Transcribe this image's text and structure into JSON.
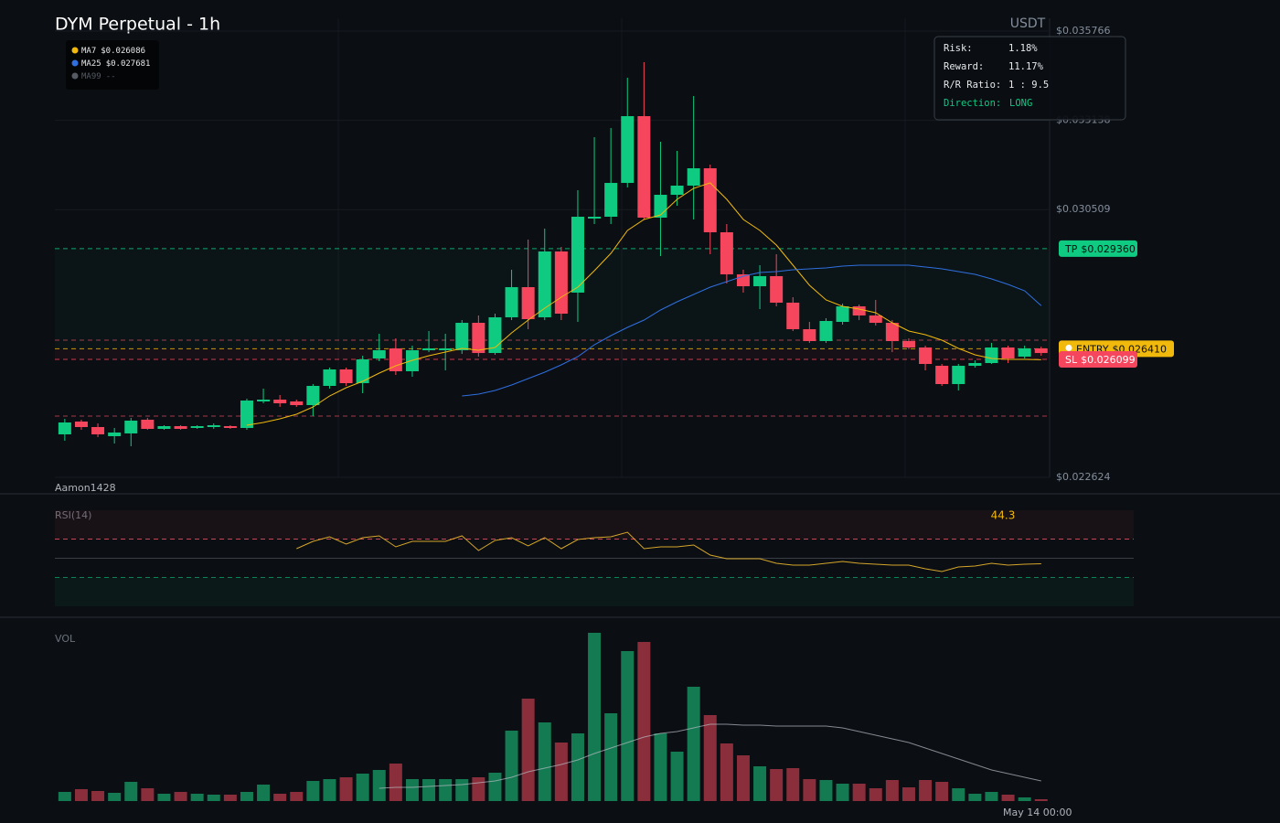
{
  "chart_data": [
    {
      "type": "candlestick",
      "title": "DYM Perpetual - 1h",
      "quote": "USDT",
      "watermark": "Aamon1428",
      "ylim": [
        0.022624,
        0.035766
      ],
      "yticks": [
        {
          "value": 0.035766,
          "label": "$0.035766"
        },
        {
          "value": 0.033138,
          "label": "$0.033138"
        },
        {
          "value": 0.030509,
          "label": "$0.030509"
        },
        {
          "value": 0.022624,
          "label": "$0.022624"
        }
      ],
      "grid": true,
      "up_color": "#0ecb81",
      "down_color": "#f6465d",
      "open": [
        0.02389,
        0.024267,
        0.024105,
        0.023836,
        0.023917,
        0.024321,
        0.024051,
        0.024132,
        0.024078,
        0.024105,
        0.024132,
        0.024078,
        0.024859,
        0.024913,
        0.024859,
        0.024751,
        0.025317,
        0.025802,
        0.025398,
        0.026125,
        0.026421,
        0.025748,
        0.026367,
        0.026367,
        0.026367,
        0.027175,
        0.026286,
        0.027337,
        0.028225,
        0.027337,
        0.029276,
        0.028064,
        0.030245,
        0.030299,
        0.031295,
        0.033261,
        0.030272,
        0.030945,
        0.031215,
        0.031726,
        0.029841,
        0.028602,
        0.028252,
        0.028549,
        0.027768,
        0.026987,
        0.026637,
        0.027202,
        0.02766,
        0.027391,
        0.027175,
        0.026637,
        0.026448,
        0.025909,
        0.025371,
        0.025909,
        0.02599,
        0.026448,
        0.026179,
        0.026421
      ],
      "high": [
        0.024348,
        0.024321,
        0.024213,
        0.024078,
        0.024374,
        0.024374,
        0.024159,
        0.024159,
        0.024159,
        0.024213,
        0.024159,
        0.02494,
        0.025236,
        0.025048,
        0.024913,
        0.025371,
        0.025856,
        0.025856,
        0.026206,
        0.026852,
        0.026717,
        0.026502,
        0.026933,
        0.026852,
        0.027256,
        0.027391,
        0.027444,
        0.028737,
        0.029626,
        0.029949,
        0.02941,
        0.03108,
        0.032642,
        0.032911,
        0.034392,
        0.03485,
        0.032507,
        0.032238,
        0.033854,
        0.031834,
        0.030084,
        0.028737,
        0.028872,
        0.029195,
        0.027929,
        0.027202,
        0.02731,
        0.027741,
        0.027714,
        0.027848,
        0.027256,
        0.026717,
        0.026502,
        0.025963,
        0.025963,
        0.026071,
        0.026583,
        0.026502,
        0.026502,
        0.026475
      ],
      "low": [
        0.023701,
        0.024024,
        0.023809,
        0.02362,
        0.02354,
        0.024024,
        0.024024,
        0.024024,
        0.024051,
        0.024051,
        0.024051,
        0.024024,
        0.024805,
        0.024698,
        0.024698,
        0.024428,
        0.025236,
        0.025317,
        0.025102,
        0.026044,
        0.02564,
        0.025586,
        0.026313,
        0.025775,
        0.02626,
        0.026179,
        0.026233,
        0.027256,
        0.026987,
        0.027256,
        0.027256,
        0.027202,
        0.030084,
        0.030084,
        0.031161,
        0.030218,
        0.029141,
        0.030622,
        0.030218,
        0.029195,
        0.028333,
        0.028064,
        0.027579,
        0.02766,
        0.026933,
        0.026583,
        0.026583,
        0.027121,
        0.027256,
        0.027094,
        0.026313,
        0.026394,
        0.025775,
        0.025317,
        0.025182,
        0.025856,
        0.025963,
        0.02599,
        0.026125,
        0.026206
      ],
      "close": [
        0.02424,
        0.024105,
        0.02389,
        0.023944,
        0.024294,
        0.024051,
        0.024132,
        0.024051,
        0.024132,
        0.024159,
        0.024078,
        0.024886,
        0.024913,
        0.024805,
        0.024751,
        0.025317,
        0.025802,
        0.025398,
        0.026098,
        0.026367,
        0.025748,
        0.026367,
        0.026421,
        0.026421,
        0.027175,
        0.026286,
        0.027337,
        0.028225,
        0.027283,
        0.029276,
        0.027444,
        0.030299,
        0.030299,
        0.031295,
        0.033261,
        0.030272,
        0.030945,
        0.031215,
        0.031726,
        0.029841,
        0.028602,
        0.028252,
        0.028549,
        0.027768,
        0.026987,
        0.026637,
        0.027229,
        0.02766,
        0.027391,
        0.027175,
        0.026637,
        0.026448,
        0.025963,
        0.025371,
        0.025909,
        0.02599,
        0.026448,
        0.026125,
        0.026421,
        0.026286
      ],
      "series": [
        {
          "name": "MA7",
          "color": "#f0b90b",
          "last_label": "$0.026086",
          "values": [
            null,
            null,
            null,
            null,
            null,
            null,
            null,
            null,
            null,
            null,
            null,
            0.024159,
            0.02424,
            0.024348,
            0.024482,
            0.024698,
            0.025021,
            0.025263,
            0.025452,
            0.025694,
            0.025909,
            0.026071,
            0.026206,
            0.026313,
            0.026421,
            0.026367,
            0.026448,
            0.026879,
            0.027256,
            0.027606,
            0.027929,
            0.028225,
            0.02871,
            0.029222,
            0.029895,
            0.030218,
            0.030353,
            0.030811,
            0.031134,
            0.031295,
            0.030811,
            0.030218,
            0.029895,
            0.029464,
            0.028872,
            0.028279,
            0.027848,
            0.02766,
            0.027579,
            0.027471,
            0.027175,
            0.026933,
            0.026825,
            0.026664,
            0.026421,
            0.026233,
            0.026125,
            0.026098,
            0.026098,
            0.026086
          ]
        },
        {
          "name": "MA25",
          "color": "#2f6fe0",
          "last_label": "$0.027681",
          "values": [
            null,
            null,
            null,
            null,
            null,
            null,
            null,
            null,
            null,
            null,
            null,
            null,
            null,
            null,
            null,
            null,
            null,
            null,
            null,
            null,
            null,
            null,
            null,
            null,
            0.025021,
            0.025075,
            0.025182,
            0.025344,
            0.025532,
            0.025721,
            0.025936,
            0.026179,
            0.026529,
            0.026798,
            0.027041,
            0.027256,
            0.027552,
            0.027795,
            0.02801,
            0.028225,
            0.028387,
            0.028549,
            0.028656,
            0.028683,
            0.028737,
            0.028764,
            0.028791,
            0.028845,
            0.028872,
            0.028872,
            0.028872,
            0.028872,
            0.028818,
            0.028764,
            0.028683,
            0.028602,
            0.028468,
            0.028306,
            0.028118,
            0.027681
          ]
        },
        {
          "name": "MA99",
          "color": "#555a63",
          "last_label": "--"
        }
      ],
      "levels": [
        {
          "name": "TP",
          "value": 0.02936,
          "label": "$0.029360",
          "color": "#0ecb81",
          "text_color": "#0b0e13"
        },
        {
          "name": "ENTRY",
          "value": 0.02641,
          "label": "$0.026410",
          "color": "#f0b90b",
          "text_color": "#0b0e13"
        },
        {
          "name": "SL",
          "value": 0.026099,
          "label": "$0.026099",
          "color": "#f6465d",
          "text_color": "#ffffff"
        }
      ],
      "extra_levels": [
        0.026664,
        0.024428
      ]
    },
    {
      "type": "line",
      "title": "RSI(14)",
      "color": "#d4a52a",
      "ylim": [
        0,
        100
      ],
      "guides": [
        70,
        50,
        30
      ],
      "values": [
        null,
        null,
        null,
        null,
        null,
        null,
        null,
        null,
        null,
        null,
        null,
        null,
        null,
        null,
        60,
        67.6,
        72.4,
        64.8,
        71.4,
        73.3,
        61.9,
        67.6,
        67.6,
        67.6,
        73.3,
        58.1,
        68.6,
        71.4,
        62.9,
        71.4,
        60,
        69.5,
        71.4,
        72.4,
        77.1,
        60,
        61.9,
        61.9,
        63.8,
        53.3,
        49.5,
        49.5,
        49.5,
        44.8,
        42.9,
        42.9,
        44.8,
        46.7,
        44.8,
        43.8,
        42.9,
        42.9,
        39,
        36.2,
        41,
        41.9,
        44.8,
        42.9,
        43.8,
        44.3
      ]
    },
    {
      "type": "bar",
      "title": "VOL",
      "up_color": "#147a52",
      "down_color": "#8a2e3b",
      "ma_color": "#b8bcc4",
      "categories": [
        null,
        null,
        null,
        null,
        null,
        null,
        null,
        null,
        null,
        null,
        null,
        null,
        null,
        null,
        null,
        null,
        null,
        null,
        null,
        null,
        null,
        null,
        null,
        null,
        null,
        null,
        null,
        null,
        null,
        null,
        null,
        null,
        null,
        null,
        null,
        null,
        null,
        null,
        null,
        null,
        null,
        null,
        null,
        null,
        null,
        null,
        null,
        null,
        null,
        null,
        null,
        null,
        null,
        null,
        null,
        null,
        null,
        null,
        null,
        "May 14 00:00"
      ],
      "values": [
        10,
        13,
        11,
        9,
        21,
        14,
        8,
        10,
        8,
        7,
        7,
        10,
        18,
        8,
        10,
        22,
        24,
        26,
        30,
        34,
        41,
        24,
        24,
        24,
        24,
        26,
        31,
        77,
        112,
        86,
        64,
        74,
        184,
        96,
        164,
        174,
        74,
        54,
        125,
        94,
        63,
        50,
        38,
        35,
        36,
        24,
        23,
        19,
        19,
        14,
        23,
        15,
        23,
        21,
        14,
        8,
        10,
        7,
        4,
        2
      ],
      "ma_values": [
        null,
        null,
        null,
        null,
        null,
        null,
        null,
        null,
        null,
        null,
        null,
        null,
        null,
        null,
        null,
        null,
        null,
        null,
        null,
        14,
        15,
        15,
        16,
        17,
        18,
        20,
        22,
        26,
        32,
        36,
        40,
        45,
        52,
        58,
        64,
        70,
        74,
        76,
        80,
        84,
        84,
        83,
        83,
        82,
        82,
        82,
        82,
        80,
        76,
        72,
        68,
        64,
        58,
        52,
        46,
        40,
        34,
        30,
        26,
        22
      ]
    }
  ],
  "risk_panel": {
    "rows": [
      {
        "label": "Risk:",
        "value": "1.18%"
      },
      {
        "label": "Reward:",
        "value": "11.17%"
      },
      {
        "label": "R/R Ratio:",
        "value": "1 : 9.5"
      },
      {
        "label": "Direction:",
        "value": "LONG"
      }
    ]
  }
}
